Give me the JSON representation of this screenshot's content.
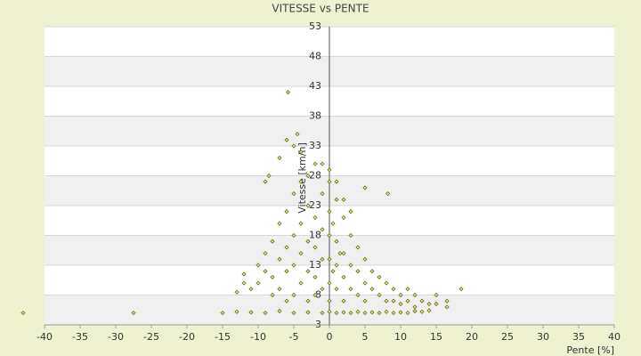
{
  "chart_data": {
    "type": "scatter",
    "title": "VITESSE vs PENTE",
    "x_label": "Pente [%]",
    "y_label": "Vitesse [km/h]",
    "color": "#6b6b00",
    "grid": true,
    "xlim": [
      -40,
      40
    ],
    "xticks": [
      -40,
      -35,
      -30,
      -25,
      -20,
      -15,
      -10,
      -5,
      0,
      5,
      10,
      15,
      20,
      25,
      30,
      35,
      40
    ],
    "ylim": [
      3,
      53
    ],
    "yticks": [
      3,
      8,
      13,
      18,
      23,
      28,
      33,
      38,
      43,
      48,
      53
    ],
    "x": [
      -15,
      -13,
      -11,
      -9,
      -7,
      -5,
      -3,
      -1,
      0,
      1,
      2,
      3,
      4,
      5,
      6,
      7,
      8,
      9,
      10,
      11,
      12,
      13,
      14,
      16.5,
      -13,
      -12,
      -12,
      -11,
      -10,
      -10,
      -9,
      -9,
      -8,
      -8,
      -8,
      -7,
      -7,
      -7,
      -6,
      -6,
      -6,
      -6,
      -5,
      -5,
      -5,
      -5,
      -4,
      -4,
      -4,
      -4,
      -3,
      -3,
      -3,
      -3,
      -2,
      -2,
      -2,
      -2,
      -1,
      -1,
      -1,
      -1,
      0,
      0,
      0,
      0,
      0,
      0,
      0.5,
      0.5,
      1,
      1,
      1,
      1,
      1.5,
      2,
      2,
      2,
      2,
      3,
      3,
      3,
      4,
      4,
      4,
      5,
      5,
      5,
      6,
      6,
      7,
      7,
      8,
      8,
      9,
      9,
      10,
      10,
      11,
      11,
      12,
      12,
      13,
      14,
      15,
      15,
      16.5,
      18.5,
      -9,
      -8.5,
      -7,
      -6,
      -5,
      -4.5,
      -4,
      -3,
      -2,
      -1,
      0,
      1,
      2,
      3,
      -5.8,
      -27.5,
      -43,
      8.2,
      5
    ],
    "values": [
      5,
      5.2,
      5.1,
      5,
      5.3,
      5,
      5.1,
      5,
      5.2,
      5,
      5.1,
      5,
      5.2,
      5,
      5.1,
      5,
      5.2,
      5,
      5.1,
      5,
      5.3,
      5.2,
      5.4,
      6,
      8.5,
      10,
      11.5,
      9,
      13,
      10,
      15,
      12,
      8,
      17,
      11,
      20,
      14,
      9,
      22,
      16,
      12,
      7,
      25,
      18,
      13,
      8,
      27,
      20,
      15,
      10,
      23,
      17,
      12,
      7,
      21,
      16,
      11,
      8,
      25,
      19,
      14,
      9,
      27,
      22,
      18,
      14,
      10,
      7,
      20,
      12,
      24,
      17,
      13,
      9,
      15,
      21,
      15,
      11,
      7,
      18,
      13,
      9,
      16,
      12,
      8,
      14,
      10,
      7,
      12,
      9,
      11,
      8,
      10,
      7,
      9,
      7,
      8,
      6.5,
      9,
      7,
      8,
      6,
      7,
      6.5,
      8,
      6.5,
      7,
      9,
      27,
      28,
      31,
      34,
      33,
      35,
      32,
      28,
      30,
      30,
      29,
      27,
      24,
      22,
      42,
      5,
      5,
      25,
      26
    ]
  }
}
